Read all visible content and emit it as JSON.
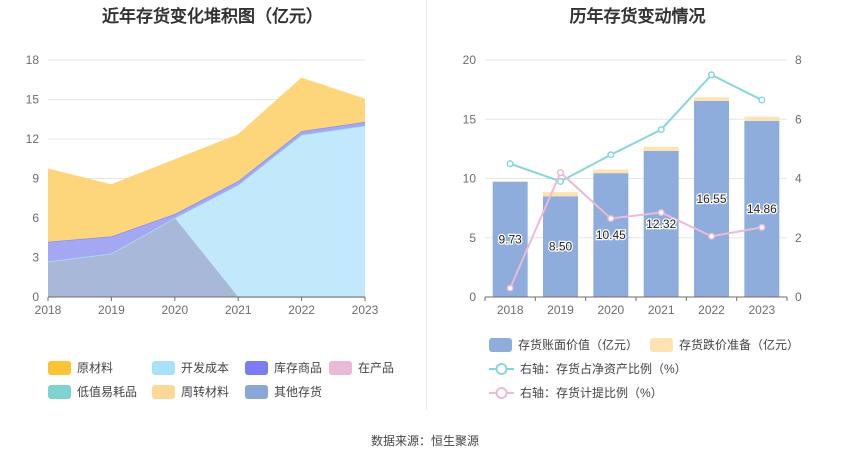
{
  "left_title": "近年存货变化堆积图（亿元）",
  "right_title": "历年存货变动情况",
  "source": "数据来源：恒生聚源",
  "left_legend": [
    "原材料",
    "开发成本",
    "库存商品",
    "在产品",
    "低值易耗品",
    "周转材料",
    "其他存货"
  ],
  "right_legend": [
    "存货账面价值（亿元）",
    "存货跌价准备（亿元）",
    "右轴：存货占净资产比例（%）",
    "右轴：存货计提比例（%）"
  ],
  "chart_data": [
    {
      "type": "area",
      "title": "近年存货变化堆积图（亿元）",
      "x": [
        "2018",
        "2019",
        "2020",
        "2021",
        "2022",
        "2023"
      ],
      "ylim": [
        0,
        18
      ],
      "yticks": [
        0,
        3,
        6,
        9,
        12,
        15,
        18
      ],
      "series": [
        {
          "name": "其他存货",
          "color": "#a8b8d8",
          "values": [
            2.7,
            3.3,
            6.0,
            0.0,
            0.0,
            0.0
          ]
        },
        {
          "name": "开发成本",
          "color": "#c2e8fb",
          "values": [
            0.0,
            0.0,
            0.0,
            8.5,
            12.3,
            13.0
          ]
        },
        {
          "name": "库存商品",
          "color": "#a4a8f2",
          "values": [
            1.5,
            1.3,
            0.3,
            0.3,
            0.3,
            0.3
          ]
        },
        {
          "name": "原材料",
          "color": "#fdd57a",
          "values": [
            5.5,
            3.9,
            4.1,
            3.5,
            4.0,
            1.7
          ]
        }
      ],
      "legend_colors": {
        "原材料": "#fcc336",
        "开发成本": "#a7e1fa",
        "库存商品": "#7c7cf2",
        "在产品": "#eab8d8",
        "低值易耗品": "#7ed2cf",
        "周转材料": "#fdd896",
        "其他存货": "#8aa6d6"
      }
    },
    {
      "type": "bar",
      "title": "历年存货变动情况",
      "categories": [
        "2018",
        "2019",
        "2020",
        "2021",
        "2022",
        "2023"
      ],
      "ylim": [
        0,
        20
      ],
      "yticks": [
        0,
        5,
        10,
        15,
        20
      ],
      "y2lim": [
        0,
        8
      ],
      "y2ticks": [
        0,
        2,
        4,
        6,
        8
      ],
      "series": [
        {
          "name": "存货账面价值（亿元）",
          "color": "#8eacdc",
          "values": [
            9.73,
            8.5,
            10.45,
            12.32,
            16.55,
            14.86
          ],
          "labels": [
            "9.73",
            "8.50",
            "10.45",
            "12.32",
            "16.55",
            "14.86"
          ]
        },
        {
          "name": "存货跌价准备（亿元）",
          "color": "#fde3b2",
          "values": [
            0.0,
            0.35,
            0.3,
            0.35,
            0.3,
            0.35
          ]
        },
        {
          "name": "右轴：存货占净资产比例（%）",
          "color": "#86d6dc",
          "axis": "right",
          "values": [
            4.5,
            3.9,
            4.8,
            5.65,
            7.5,
            6.65
          ]
        },
        {
          "name": "右轴：存货计提比例（%）",
          "color": "#ecbad6",
          "axis": "right",
          "values": [
            0.3,
            4.2,
            2.65,
            2.85,
            2.05,
            2.35
          ]
        }
      ]
    }
  ]
}
